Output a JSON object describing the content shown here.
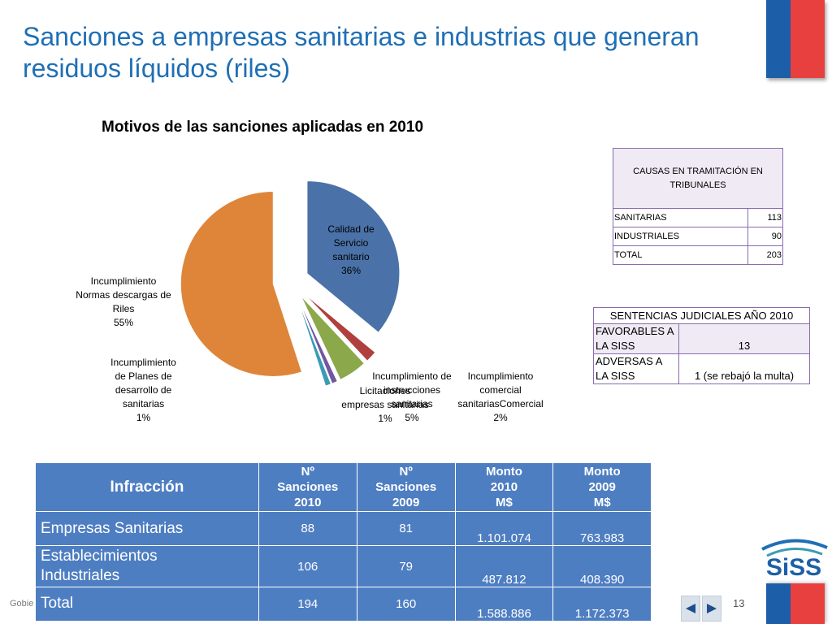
{
  "title": "Sanciones a empresas sanitarias e industrias que generan residuos líquidos (riles)",
  "chart_data": {
    "type": "pie",
    "title": "Motivos de las sanciones aplicadas en 2010",
    "series": [
      {
        "name": "Calidad de Servicio sanitario",
        "label_lines": [
          "Calidad de",
          "Servicio",
          "sanitario",
          "36%"
        ],
        "value": 36,
        "color": "#4a72a9",
        "exploded": true
      },
      {
        "name": "Incumplimiento comercial sanitariasComercial",
        "label_lines": [
          "Incumplimiento",
          "comercial",
          "sanitariasComercial",
          "2%"
        ],
        "value": 2,
        "color": "#b0403d",
        "exploded": true
      },
      {
        "name": "Incumplimiento de instrucciones sanitarias",
        "label_lines": [
          "Incumplimiento de",
          "instrucciones",
          "sanitarias",
          "5%"
        ],
        "value": 5,
        "color": "#8ba84a",
        "exploded": true
      },
      {
        "name": "Licitaciones empresas sanitarias",
        "label_lines": [
          "Licitaciones",
          "empresas sanitarias",
          "1%"
        ],
        "value": 1,
        "color": "#7157a0",
        "exploded": true
      },
      {
        "name": "Incumplimiento de Planes de desarrollo de sanitarias",
        "label_lines": [
          "Incumplimiento",
          "de Planes de",
          "desarrollo de",
          "sanitarias",
          "1%"
        ],
        "value": 1,
        "color": "#3b9bb5",
        "exploded": true
      },
      {
        "name": "Incumplimiento Normas descargas de Riles",
        "label_lines": [
          "Incumplimiento",
          "Normas descargas de",
          "Riles",
          "55%"
        ],
        "value": 55,
        "color": "#df853a",
        "exploded": true
      }
    ]
  },
  "causas_table": {
    "header": "CAUSAS EN TRAMITACIÓN EN TRIBUNALES",
    "rows": [
      {
        "label": "SANITARIAS",
        "value": "113"
      },
      {
        "label": "INDUSTRIALES",
        "value": "90"
      },
      {
        "label": "TOTAL",
        "value": "203"
      }
    ]
  },
  "sentencias_table": {
    "header": "SENTENCIAS JUDICIALES AÑO 2010",
    "rows": [
      {
        "label": "FAVORABLES A LA SISS",
        "value": "13"
      },
      {
        "label": "ADVERSAS  A LA SISS",
        "value": "1 (se rebajó la multa)"
      }
    ]
  },
  "main_table": {
    "headers": [
      "Infracción",
      "Nº Sanciones 2010",
      "Nº Sanciones 2009",
      "Monto 2010 M$",
      "Monto 2009 M$"
    ],
    "header_lines": [
      [
        "Infracción"
      ],
      [
        "Nº",
        "Sanciones",
        "2010"
      ],
      [
        "Nº",
        "Sanciones",
        "2009"
      ],
      [
        "Monto",
        "2010",
        "M$"
      ],
      [
        "Monto",
        "2009",
        "M$"
      ]
    ],
    "rows": [
      {
        "name": "Empresas Sanitarias",
        "name_lines": [
          "Empresas Sanitarias"
        ],
        "s2010": "88",
        "s2009": "81",
        "m2010": "1.101.074",
        "m2009": "763.983"
      },
      {
        "name": "Establecimientos Industriales",
        "name_lines": [
          "Establecimientos",
          "Industriales"
        ],
        "s2010": "106",
        "s2009": "79",
        "m2010": "487.812",
        "m2009": "408.390"
      },
      {
        "name": "Total",
        "name_lines": [
          "Total"
        ],
        "s2010": "194",
        "s2009": "160",
        "m2010": "1.588.886",
        "m2009": "1.172.373"
      }
    ]
  },
  "footer": {
    "text": "Gobie",
    "page_number": "13"
  },
  "logo": {
    "text": "SiSS"
  },
  "nav": {
    "prev_icon": "triangle-left-icon",
    "next_icon": "triangle-right-icon"
  },
  "colors": {
    "title": "#1f6fb5",
    "table_blue": "#4e7ec2",
    "table_border": "#8a6cb0",
    "flag_blue": "#1c5fa8",
    "flag_red": "#e8403e"
  }
}
